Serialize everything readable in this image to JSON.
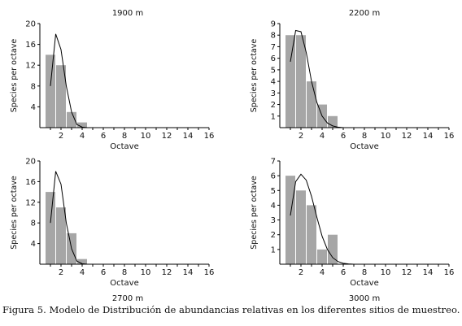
{
  "caption": "Figura 5. Modelo de Distribución de abundancias relativas en los diferentes sitios de muestreo.",
  "chart_data": [
    {
      "type": "bar",
      "title": "1900 m",
      "xlabel": "Octave",
      "ylabel": "Species per octave",
      "xlim": [
        0,
        16
      ],
      "ylim": [
        0,
        20
      ],
      "xticks": [
        2,
        4,
        6,
        8,
        10,
        12,
        14,
        16
      ],
      "yticks": [
        4,
        8,
        12,
        16,
        20
      ],
      "bars": {
        "x": [
          1,
          2,
          3,
          4
        ],
        "values": [
          14,
          12,
          3,
          1
        ]
      },
      "curve": {
        "x": [
          1,
          1.5,
          2,
          2.5,
          3,
          3.5,
          4,
          4.5
        ],
        "y": [
          8,
          18,
          15,
          8,
          3,
          0.6,
          0.1,
          0
        ]
      },
      "bar_color": "#a6a6a6"
    },
    {
      "type": "bar",
      "title": "2200 m",
      "xlabel": "Octave",
      "ylabel": "Species per octave",
      "xlim": [
        0,
        16
      ],
      "ylim": [
        0,
        9
      ],
      "xticks": [
        2,
        4,
        6,
        8,
        10,
        12,
        14,
        16
      ],
      "yticks": [
        1,
        2,
        3,
        4,
        5,
        6,
        7,
        8,
        9
      ],
      "bars": {
        "x": [
          1,
          2,
          3,
          4,
          5
        ],
        "values": [
          8,
          8,
          4,
          2,
          1
        ]
      },
      "curve": {
        "x": [
          1,
          1.5,
          2,
          2.5,
          3,
          3.5,
          4,
          4.5,
          5,
          5.5,
          6
        ],
        "y": [
          5.7,
          8.4,
          8.3,
          6.5,
          4,
          2.2,
          1,
          0.4,
          0.15,
          0.04,
          0
        ]
      },
      "bar_color": "#a6a6a6"
    },
    {
      "type": "bar",
      "title": "2700 m",
      "xlabel": "Octave",
      "ylabel": "Species per octave",
      "xlim": [
        0,
        16
      ],
      "ylim": [
        0,
        20
      ],
      "xticks": [
        2,
        4,
        6,
        8,
        10,
        12,
        14,
        16
      ],
      "yticks": [
        4,
        8,
        12,
        16,
        20
      ],
      "bars": {
        "x": [
          1,
          2,
          3,
          4
        ],
        "values": [
          14,
          11,
          6,
          1
        ]
      },
      "curve": {
        "x": [
          1,
          1.5,
          2,
          2.5,
          3,
          3.5,
          4,
          4.5
        ],
        "y": [
          8,
          18,
          15.5,
          8,
          3,
          0.6,
          0.1,
          0
        ]
      },
      "bar_color": "#a6a6a6"
    },
    {
      "type": "bar",
      "title": "3000 m",
      "xlabel": "Octave",
      "ylabel": "Species per octave",
      "xlim": [
        0,
        16
      ],
      "ylim": [
        0,
        7
      ],
      "xticks": [
        2,
        4,
        6,
        8,
        10,
        12,
        14,
        16
      ],
      "yticks": [
        1,
        2,
        3,
        4,
        5,
        6,
        7
      ],
      "bars": {
        "x": [
          1,
          2,
          3,
          4,
          5
        ],
        "values": [
          6,
          5,
          4,
          1,
          2
        ]
      },
      "curve": {
        "x": [
          1,
          1.5,
          2,
          2.5,
          3,
          3.5,
          4,
          4.5,
          5,
          5.5,
          6,
          6.5,
          7
        ],
        "y": [
          3.3,
          5.6,
          6.1,
          5.7,
          4.6,
          3.2,
          1.9,
          1,
          0.45,
          0.18,
          0.06,
          0.02,
          0
        ]
      },
      "bar_color": "#a6a6a6"
    }
  ]
}
